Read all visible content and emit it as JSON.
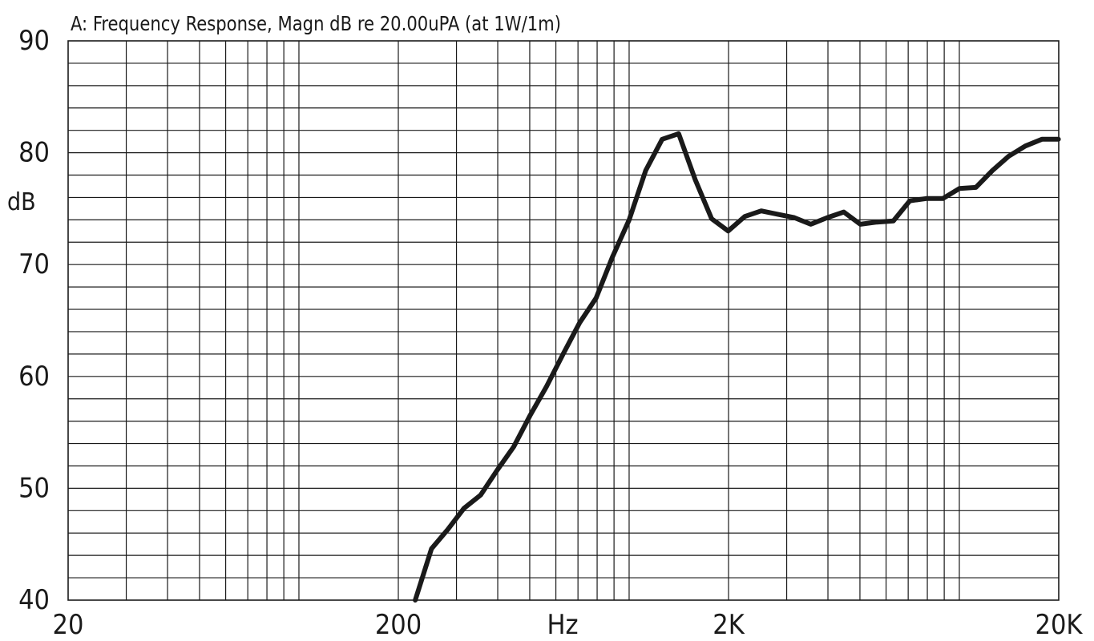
{
  "chart_data": {
    "type": "line",
    "title": "A: Frequency Response, Magn dB re 20.00uPA  (at 1W/1m)",
    "xlabel": "Hz",
    "ylabel": "dB",
    "xscale": "log",
    "xlim": [
      20,
      20000
    ],
    "ylim": [
      40,
      90
    ],
    "x_tick_labels": [
      {
        "value": 20,
        "label": "20"
      },
      {
        "value": 200,
        "label": "200"
      },
      {
        "value": 2000,
        "label": "2K"
      },
      {
        "value": 20000,
        "label": "20K"
      }
    ],
    "y_tick_labels": [
      {
        "value": 40,
        "label": "40"
      },
      {
        "value": 50,
        "label": "50"
      },
      {
        "value": 60,
        "label": "60"
      },
      {
        "value": 70,
        "label": "70"
      },
      {
        "value": 80,
        "label": "80"
      },
      {
        "value": 90,
        "label": "90"
      }
    ],
    "grid": true,
    "series": [
      {
        "x": [
          225,
          252,
          282,
          316,
          355,
          398,
          447,
          501,
          562,
          631,
          708,
          794,
          891,
          1000,
          1122,
          1259,
          1413,
          1585,
          1778,
          1995,
          2239,
          2512,
          2818,
          3162,
          3548,
          3981,
          4467,
          5012,
          5623,
          6310,
          7079,
          7943,
          8913,
          10000,
          11220,
          12589,
          14125,
          15849,
          17783,
          19953
        ],
        "y": [
          40.0,
          44.6,
          46.3,
          48.2,
          49.4,
          51.6,
          53.7,
          56.5,
          59.1,
          62.0,
          64.8,
          67.0,
          70.7,
          74.0,
          78.4,
          81.2,
          81.7,
          77.6,
          74.1,
          73.0,
          74.3,
          74.8,
          74.5,
          74.2,
          73.6,
          74.2,
          74.7,
          73.6,
          73.8,
          73.9,
          75.7,
          75.9,
          75.9,
          76.8,
          76.9,
          78.4,
          79.7,
          80.6,
          81.2,
          81.2
        ]
      }
    ]
  }
}
